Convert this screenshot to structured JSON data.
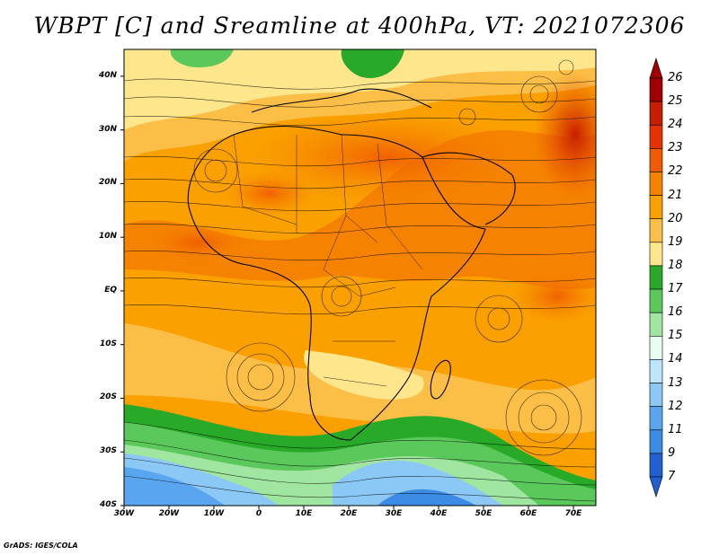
{
  "title": "WBPT [C] and Sreamline at 400hPa, VT: 2021072306",
  "credit": "GrADS: IGES/COLA",
  "map": {
    "region": "Africa and surrounding ocean",
    "lat_range": [
      -40,
      45
    ],
    "lon_range": [
      -30,
      75
    ],
    "lat_ticks": [
      {
        "value": 40,
        "label": "40N"
      },
      {
        "value": 30,
        "label": "30N"
      },
      {
        "value": 20,
        "label": "20N"
      },
      {
        "value": 10,
        "label": "10N"
      },
      {
        "value": 0,
        "label": "EQ"
      },
      {
        "value": -10,
        "label": "10S"
      },
      {
        "value": -20,
        "label": "20S"
      },
      {
        "value": -30,
        "label": "30S"
      },
      {
        "value": -40,
        "label": "40S"
      }
    ],
    "lon_ticks": [
      {
        "value": -30,
        "label": "30W"
      },
      {
        "value": -20,
        "label": "20W"
      },
      {
        "value": -10,
        "label": "10W"
      },
      {
        "value": 0,
        "label": "0"
      },
      {
        "value": 10,
        "label": "10E"
      },
      {
        "value": 20,
        "label": "20E"
      },
      {
        "value": 30,
        "label": "30E"
      },
      {
        "value": 40,
        "label": "40E"
      },
      {
        "value": 50,
        "label": "50E"
      },
      {
        "value": 60,
        "label": "60E"
      },
      {
        "value": 70,
        "label": "70E"
      }
    ]
  },
  "colorbar": {
    "labels": [
      "26",
      "25",
      "24",
      "23",
      "22",
      "21",
      "20",
      "19",
      "18",
      "17",
      "16",
      "15",
      "14",
      "13",
      "12",
      "11",
      "9",
      "7"
    ],
    "colors": [
      "#a00000",
      "#c81e00",
      "#e63200",
      "#f05a00",
      "#f58200",
      "#faa000",
      "#fbbe46",
      "#fde68c",
      "#28aa28",
      "#5ac85a",
      "#a0e6a0",
      "#e6fff0",
      "#bee6fa",
      "#8cc8f5",
      "#5aa5f0",
      "#3c8ce6",
      "#2060d0"
    ]
  }
}
